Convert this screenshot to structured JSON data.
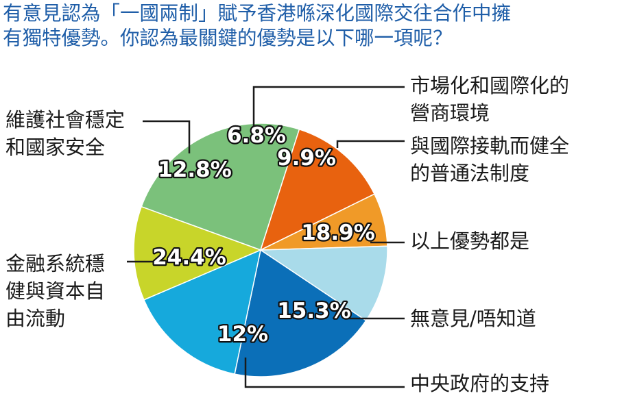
{
  "chart_data": {
    "type": "pie",
    "title_lines": [
      "有意見認為「一國兩制」賦予香港喺深化國際交往合作中擁",
      "有獨特優勢。你認為最關鍵的優勢是以下哪一項呢？"
    ],
    "slices": [
      {
        "label_lines": [
          "金融系統穩",
          "健與資本自",
          "由流動"
        ],
        "value": 24.4,
        "value_label": "24.4%",
        "color": "#7bc17b"
      },
      {
        "label_lines": [
          "維護社會穩定",
          "和國家安全"
        ],
        "value": 12.8,
        "value_label": "12.8%",
        "color": "#e8620f"
      },
      {
        "label_lines": [
          "市場化和國際化的",
          "營商環境"
        ],
        "value": 6.8,
        "value_label": "6.8%",
        "color": "#f09a28"
      },
      {
        "label_lines": [
          "與國際接軌而健全",
          "的普通法制度"
        ],
        "value": 9.9,
        "value_label": "9.9%",
        "color": "#a9dbea"
      },
      {
        "label_lines": [
          "以上優勢都是"
        ],
        "value": 18.9,
        "value_label": "18.9%",
        "color": "#0b6fb8"
      },
      {
        "label_lines": [
          "無意見/唔知道"
        ],
        "value": 15.3,
        "value_label": "15.3%",
        "color": "#16a9dc"
      },
      {
        "label_lines": [
          "中央政府的支持"
        ],
        "value": 12,
        "value_label": "12%",
        "color": "#c8d52a"
      }
    ]
  }
}
